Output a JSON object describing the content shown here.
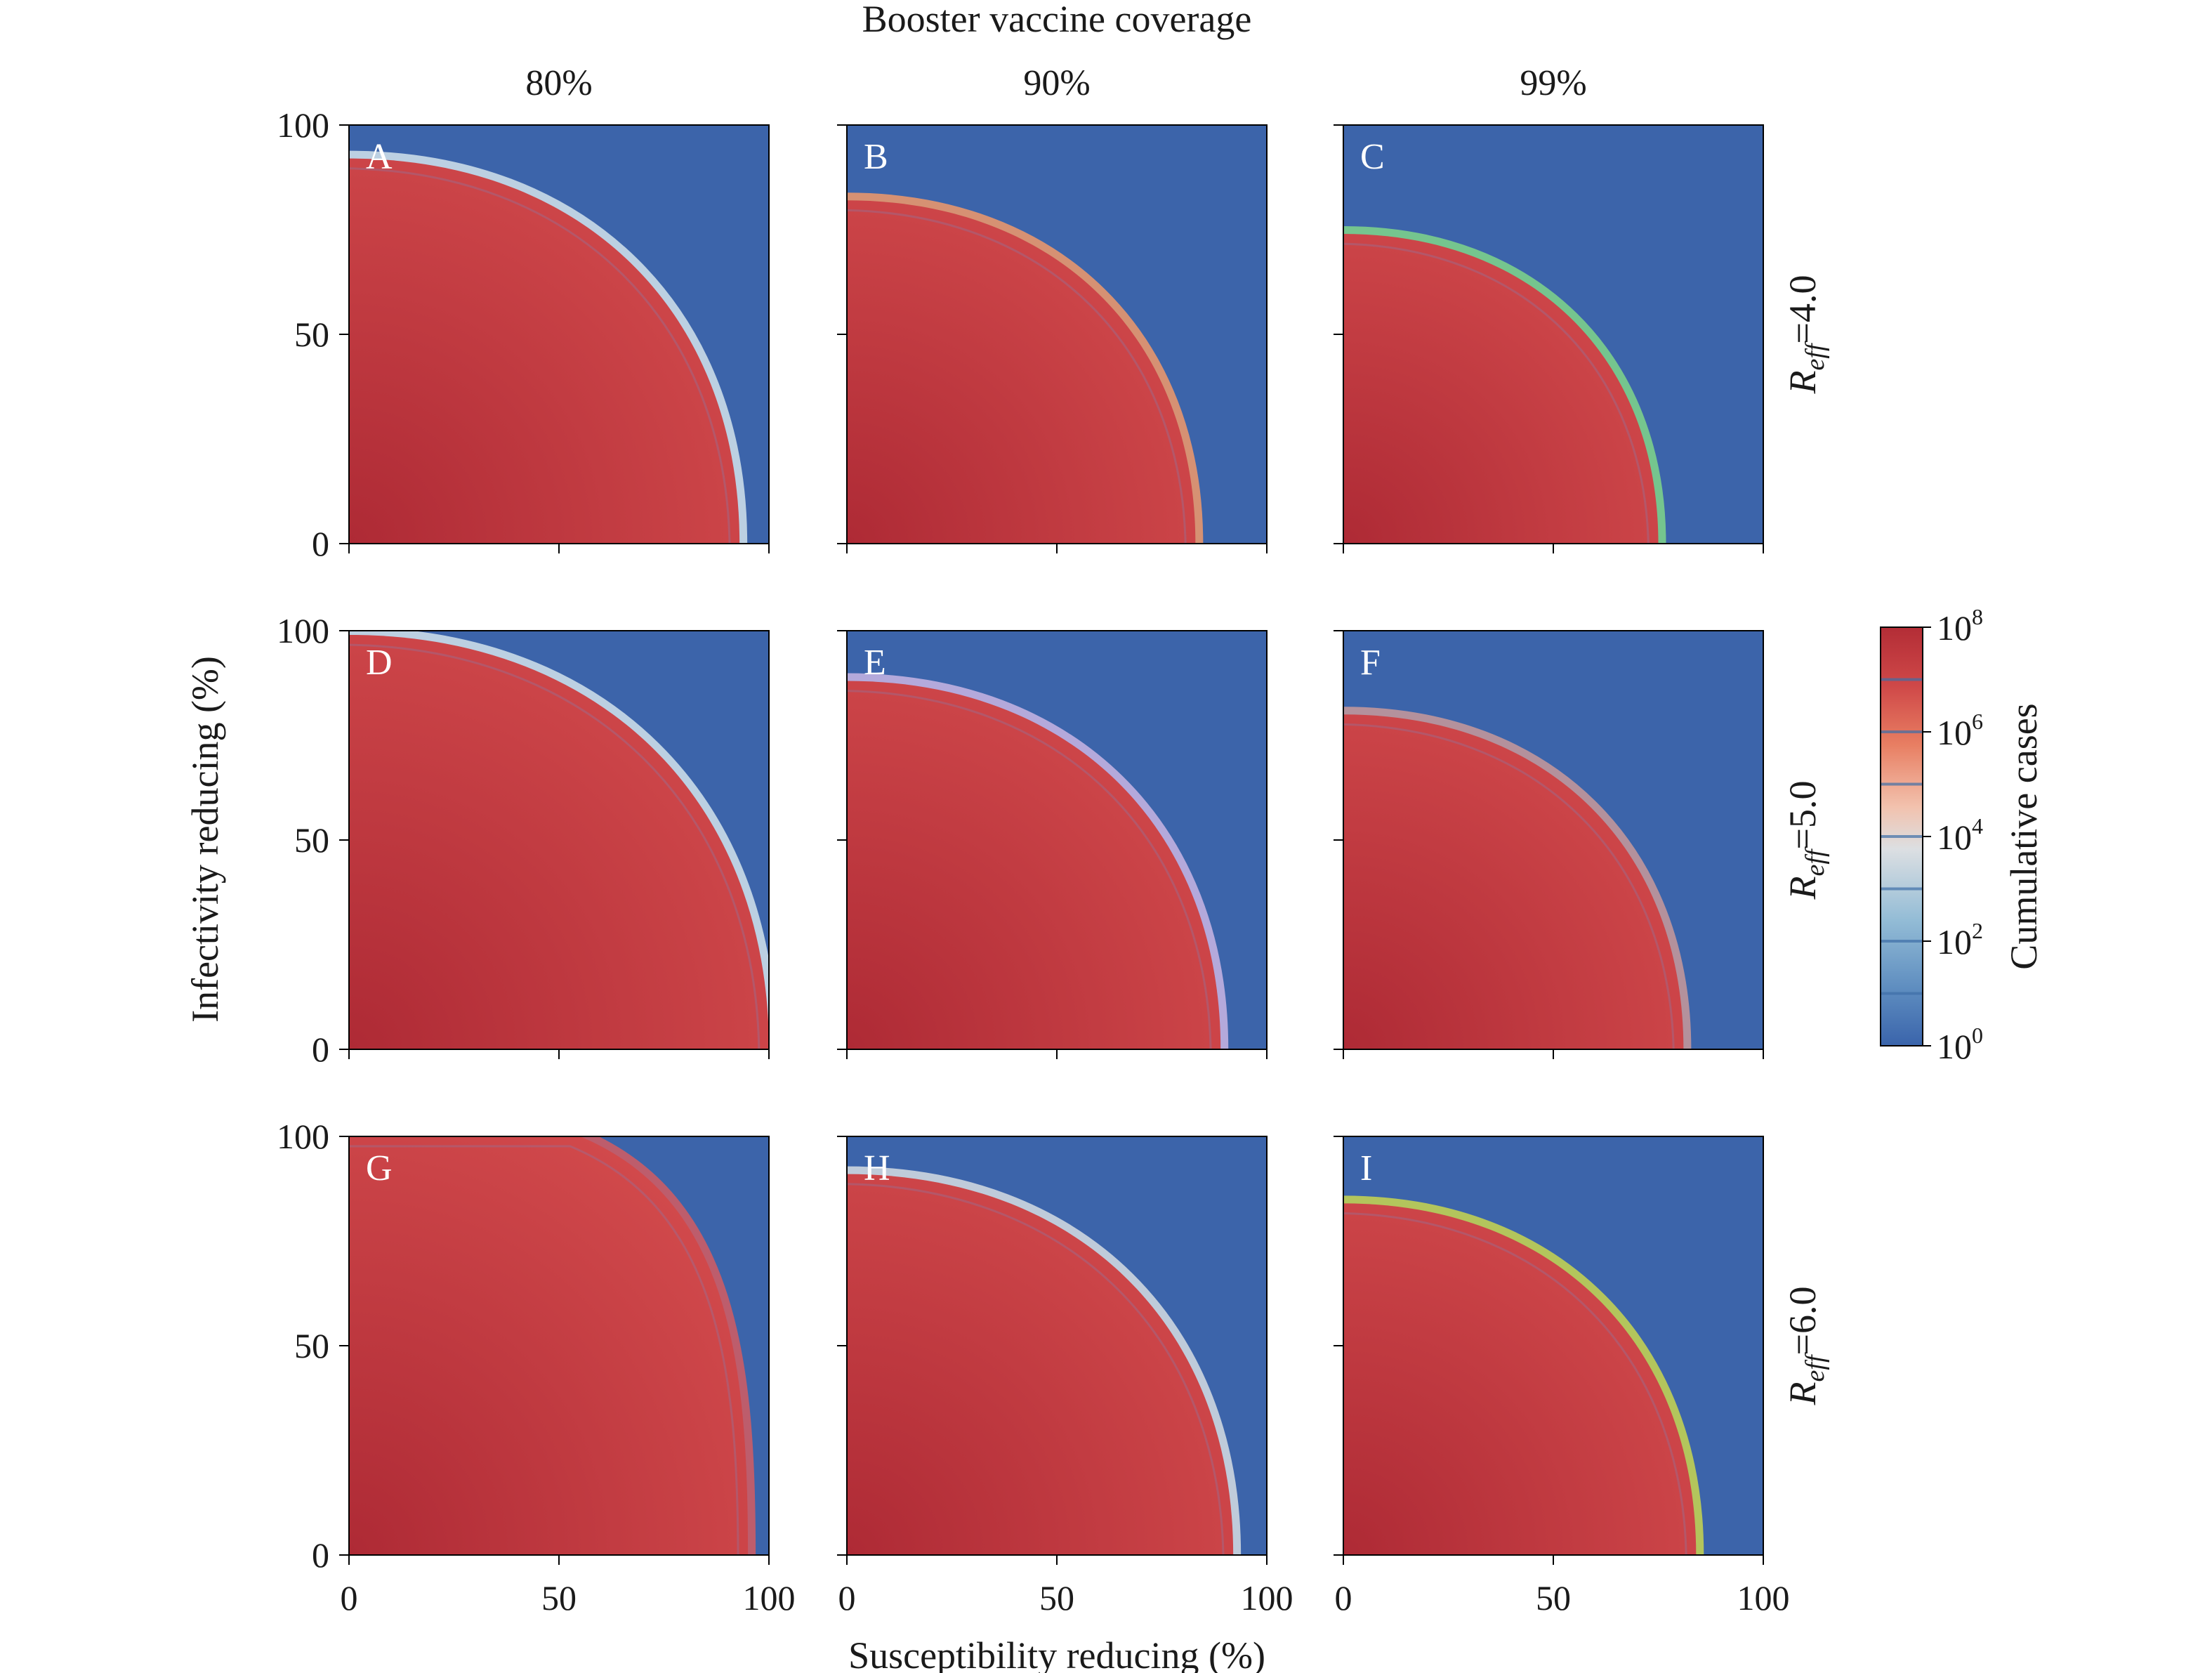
{
  "chart_data": {
    "type": "heatmap",
    "title": "Booster vaccine coverage",
    "xlabel": "Susceptibility reducing (%)",
    "ylabel": "Infectivity reducing (%)",
    "xlim": [
      0,
      100
    ],
    "ylim": [
      0,
      100
    ],
    "x_ticks": [
      "0",
      "50",
      "100"
    ],
    "y_ticks": [
      "0",
      "50",
      "100"
    ],
    "columns": [
      "80%",
      "90%",
      "99%"
    ],
    "rows": [
      {
        "prefix": "R",
        "sub": "eff",
        "value": "=4.0"
      },
      {
        "prefix": "R",
        "sub": "eff",
        "value": "=5.0"
      },
      {
        "prefix": "R",
        "sub": "eff",
        "value": "=6.0"
      }
    ],
    "colorbar": {
      "label": "Cumulative cases",
      "scale": "log",
      "range": [
        1,
        100000000
      ],
      "ticks": [
        {
          "base": "10",
          "exp": "8"
        },
        {
          "base": "10",
          "exp": "6"
        },
        {
          "base": "10",
          "exp": "4"
        },
        {
          "base": "10",
          "exp": "2"
        },
        {
          "base": "10",
          "exp": "0"
        }
      ],
      "colors": [
        "#3a64ab",
        "#5f8ec0",
        "#93bcd6",
        "#dcdfe2",
        "#f2c2ae",
        "#e87e62",
        "#cf4848",
        "#b32d36"
      ]
    },
    "panels": [
      {
        "letter": "A",
        "row": 0,
        "col": 0,
        "edge_color": "#d3e3ec",
        "boundary": {
          "x_at_top": 0,
          "y_at_left": 92,
          "x_at_bottom": 93
        },
        "top_clipped": false
      },
      {
        "letter": "B",
        "row": 0,
        "col": 1,
        "edge_color": "#f29a6a",
        "boundary": {
          "x_at_top": 0,
          "y_at_left": 82,
          "x_at_bottom": 83
        },
        "top_clipped": false
      },
      {
        "letter": "C",
        "row": 0,
        "col": 2,
        "edge_color": "#7fd68a",
        "boundary": {
          "x_at_top": 0,
          "y_at_left": 74,
          "x_at_bottom": 75
        },
        "top_clipped": false
      },
      {
        "letter": "D",
        "row": 1,
        "col": 0,
        "edge_color": "#d3e3ec",
        "boundary": {
          "x_at_top": 0,
          "y_at_left": 99,
          "x_at_bottom": 100
        },
        "top_clipped": false
      },
      {
        "letter": "E",
        "row": 1,
        "col": 1,
        "edge_color": "#c9b6e4",
        "boundary": {
          "x_at_top": 0,
          "y_at_left": 88,
          "x_at_bottom": 89
        },
        "top_clipped": false
      },
      {
        "letter": "F",
        "row": 1,
        "col": 2,
        "edge_color": "#c99a9a",
        "boundary": {
          "x_at_top": 0,
          "y_at_left": 80,
          "x_at_bottom": 81
        },
        "top_clipped": false
      },
      {
        "letter": "G",
        "row": 2,
        "col": 0,
        "edge_color": "#d45c62",
        "boundary": {
          "x_at_top": 55,
          "y_at_left": 100,
          "x_at_bottom": 95
        },
        "top_clipped": true
      },
      {
        "letter": "H",
        "row": 2,
        "col": 1,
        "edge_color": "#d6dde3",
        "boundary": {
          "x_at_top": 0,
          "y_at_left": 91,
          "x_at_bottom": 92
        },
        "top_clipped": false
      },
      {
        "letter": "I",
        "row": 2,
        "col": 2,
        "edge_color": "#c8d64f",
        "boundary": {
          "x_at_top": 0,
          "y_at_left": 84,
          "x_at_bottom": 84
        },
        "top_clipped": false
      }
    ],
    "background_color": "#3c64aa",
    "fill_color_low": "#d24a4c",
    "fill_color_high": "#ae2a35"
  }
}
